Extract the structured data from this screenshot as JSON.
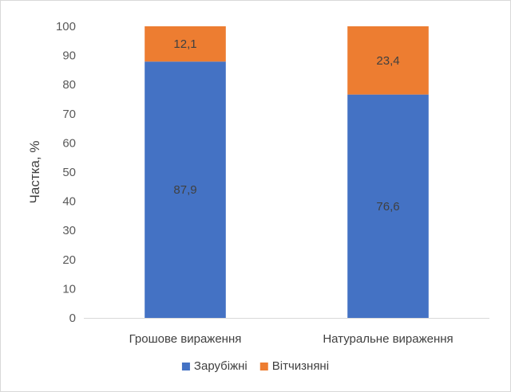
{
  "chart_data": {
    "type": "bar",
    "stacked": true,
    "categories": [
      "Грошове вираження",
      "Натуральне вираження"
    ],
    "series": [
      {
        "name": "Зарубіжні",
        "values": [
          87.9,
          76.6
        ],
        "labels": [
          "87,9",
          "76,6"
        ],
        "color": "#4472C4"
      },
      {
        "name": "Вітчизняні",
        "values": [
          12.1,
          23.4
        ],
        "labels": [
          "12,1",
          "23,4"
        ],
        "color": "#ED7D31"
      }
    ],
    "ylabel": "Частка, %",
    "ylim": [
      0,
      100
    ],
    "yticks": [
      0,
      10,
      20,
      30,
      40,
      50,
      60,
      70,
      80,
      90,
      100
    ],
    "grid": false,
    "legend": "bottom"
  }
}
